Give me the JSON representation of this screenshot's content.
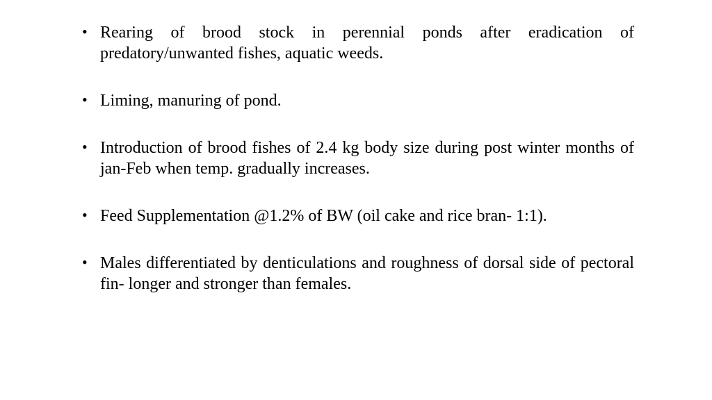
{
  "slide": {
    "bullets": [
      "Rearing of brood stock in perennial ponds after eradication of predatory/unwanted fishes, aquatic weeds.",
      "Liming, manuring of pond.",
      "Introduction of brood fishes of 2.4 kg body size during post winter months of jan-Feb when temp. gradually increases.",
      "Feed Supplementation @1.2% of BW (oil cake and rice bran- 1:1).",
      "Males differentiated by denticulations and roughness of dorsal side of pectoral fin- longer and stronger than females."
    ],
    "font_family": "Times New Roman",
    "font_size_pt": 24,
    "text_color": "#000000",
    "background_color": "#ffffff",
    "text_align": "justify",
    "bullet_glyph": "•"
  }
}
